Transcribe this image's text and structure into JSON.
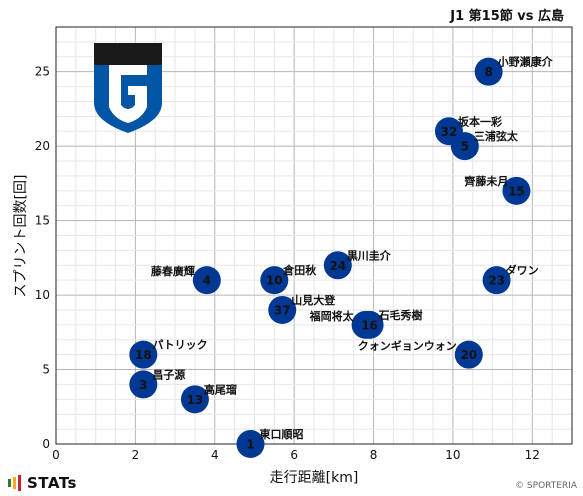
{
  "header": {
    "title": "J1 第15節 vs 広島"
  },
  "colors": {
    "point": "#003893",
    "point_text": "#ffffff",
    "grid": "#cfcfcf",
    "badge_dark": "#1a1a1a",
    "badge_blue": "#0055a5"
  },
  "chart_data": {
    "type": "scatter",
    "xlabel": "走行距離[km]",
    "ylabel": "スプリント回数[回]",
    "xlim": [
      0,
      13
    ],
    "ylim": [
      0,
      28
    ],
    "xticks": [
      0,
      2,
      4,
      6,
      8,
      10,
      12
    ],
    "yticks": [
      0,
      5,
      10,
      15,
      20,
      25
    ],
    "grid": true,
    "points": [
      {
        "number": "8",
        "name": "小野瀬康介",
        "x": 10.9,
        "y": 25
      },
      {
        "number": "32",
        "name": "坂本一彩",
        "x": 9.9,
        "y": 21
      },
      {
        "number": "5",
        "name": "三浦弦太",
        "x": 10.3,
        "y": 20
      },
      {
        "number": "15",
        "name": "齊藤未月",
        "x": 11.6,
        "y": 17
      },
      {
        "number": "24",
        "name": "黒川圭介",
        "x": 7.1,
        "y": 12
      },
      {
        "number": "4",
        "name": "藤春廣輝",
        "x": 3.8,
        "y": 11
      },
      {
        "number": "10",
        "name": "倉田秋",
        "x": 5.5,
        "y": 11
      },
      {
        "number": "23",
        "name": "ダワン",
        "x": 11.1,
        "y": 11
      },
      {
        "number": "37",
        "name": "山見大登",
        "x": 5.7,
        "y": 9
      },
      {
        "number": "28",
        "name": "福岡将太",
        "x": 7.8,
        "y": 8
      },
      {
        "number": "16",
        "name": "石毛秀樹",
        "x": 7.9,
        "y": 8
      },
      {
        "number": "20",
        "name": "クォンギョンウォン",
        "x": 10.4,
        "y": 6
      },
      {
        "number": "18",
        "name": "パトリック",
        "x": 2.2,
        "y": 6
      },
      {
        "number": "3",
        "name": "昌子源",
        "x": 2.2,
        "y": 4
      },
      {
        "number": "13",
        "name": "高尾瑠",
        "x": 3.5,
        "y": 3
      },
      {
        "number": "1",
        "name": "東口順昭",
        "x": 4.9,
        "y": 0
      }
    ]
  },
  "footer": {
    "brand": "STATs",
    "credit": "© SPORTERIA"
  }
}
